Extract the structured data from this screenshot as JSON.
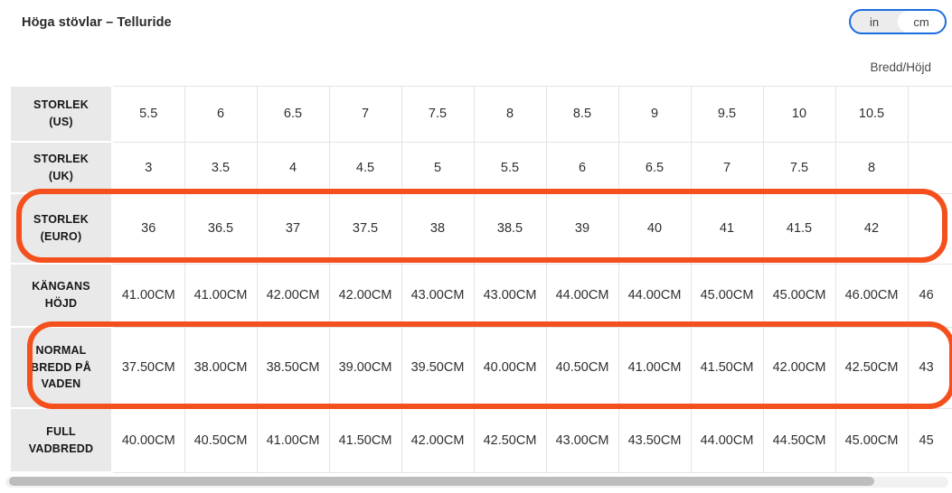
{
  "page": {
    "title": "Höga stövlar – Telluride",
    "axis_label": "Bredd/Höjd"
  },
  "unit_toggle": {
    "options": [
      {
        "label": "in",
        "selected": false
      },
      {
        "label": "cm",
        "selected": true
      }
    ],
    "border_color": "#1b6ce0"
  },
  "table": {
    "highlight_color": "#f4501e",
    "rows": [
      {
        "label": "STORLEK (US)",
        "highlighted": false,
        "values": [
          "5.5",
          "6",
          "6.5",
          "7",
          "7.5",
          "8",
          "8.5",
          "9",
          "9.5",
          "10",
          "10.5",
          ""
        ]
      },
      {
        "label": "STORLEK (UK)",
        "highlighted": false,
        "values": [
          "3",
          "3.5",
          "4",
          "4.5",
          "5",
          "5.5",
          "6",
          "6.5",
          "7",
          "7.5",
          "8",
          ""
        ]
      },
      {
        "label": "STORLEK (EURO)",
        "highlighted": true,
        "values": [
          "36",
          "36.5",
          "37",
          "37.5",
          "38",
          "38.5",
          "39",
          "40",
          "41",
          "41.5",
          "42",
          ""
        ]
      },
      {
        "label": "KÄNGANS HÖJD",
        "highlighted": false,
        "values": [
          "41.00CM",
          "41.00CM",
          "42.00CM",
          "42.00CM",
          "43.00CM",
          "43.00CM",
          "44.00CM",
          "44.00CM",
          "45.00CM",
          "45.00CM",
          "46.00CM",
          "46"
        ]
      },
      {
        "label": "NORMAL BREDD PÅ VADEN",
        "highlighted": true,
        "values": [
          "37.50CM",
          "38.00CM",
          "38.50CM",
          "39.00CM",
          "39.50CM",
          "40.00CM",
          "40.50CM",
          "41.00CM",
          "41.50CM",
          "42.00CM",
          "42.50CM",
          "43"
        ]
      },
      {
        "label": "FULL VADBREDD",
        "highlighted": false,
        "values": [
          "40.00CM",
          "40.50CM",
          "41.00CM",
          "41.50CM",
          "42.00CM",
          "42.50CM",
          "43.00CM",
          "43.50CM",
          "44.00CM",
          "44.50CM",
          "45.00CM",
          "45"
        ]
      }
    ]
  }
}
